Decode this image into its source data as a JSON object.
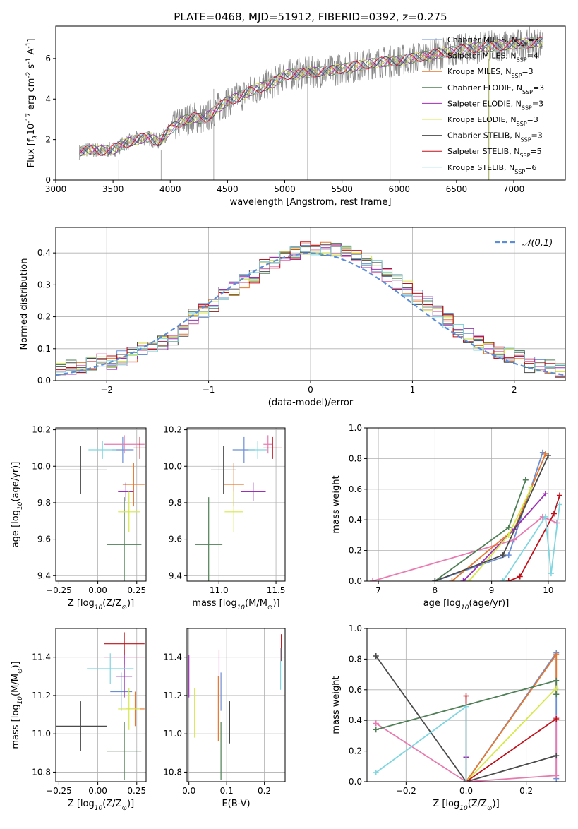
{
  "figure": {
    "title": "PLATE=0468, MJD=51912, FIBERID=0392, z=0.275"
  },
  "models": [
    {
      "name": "Chabrier MILES, N$_{SSP}$=3",
      "label_main": "Chabrier MILES, N",
      "label_sub": "SSP",
      "label_tail": "=3",
      "color": "#6b8fd6"
    },
    {
      "name": "Salpeter MILES, N$_{SSP}$=4",
      "label_main": "Salpeter MILES, N",
      "label_sub": "SSP",
      "label_tail": "=4",
      "color": "#e87ab0"
    },
    {
      "name": "Kroupa MILES, N$_{SSP}$=3",
      "label_main": "Kroupa MILES, N",
      "label_sub": "SSP",
      "label_tail": "=3",
      "color": "#e8772c"
    },
    {
      "name": "Chabrier ELODIE, N$_{SSP}$=3",
      "label_main": "Chabrier ELODIE, N",
      "label_sub": "SSP",
      "label_tail": "=3",
      "color": "#4f7f56"
    },
    {
      "name": "Salpeter ELODIE, N$_{SSP}$=3",
      "label_main": "Salpeter ELODIE, N",
      "label_sub": "SSP",
      "label_tail": "=3",
      "color": "#9b2fb5"
    },
    {
      "name": "Kroupa ELODIE, N$_{SSP}$=3",
      "label_main": "Kroupa ELODIE, N",
      "label_sub": "SSP",
      "label_tail": "=3",
      "color": "#d6e84a"
    },
    {
      "name": "Chabrier STELIB, N$_{SSP}$=3",
      "label_main": "Chabrier STELIB, N",
      "label_sub": "SSP",
      "label_tail": "=3",
      "color": "#4a4a4a"
    },
    {
      "name": "Salpeter STELIB, N$_{SSP}$=5",
      "label_main": "Salpeter STELIB, N",
      "label_sub": "SSP",
      "label_tail": "=5",
      "color": "#c0101a"
    },
    {
      "name": "Kroupa STELIB, N$_{SSP}$=6",
      "label_main": "Kroupa STELIB, N",
      "label_sub": "SSP",
      "label_tail": "=6",
      "color": "#7fd6e0"
    }
  ],
  "chart_data": [
    {
      "id": "spectrum",
      "type": "line",
      "xlabel": "wavelength [Angstrom, rest frame]",
      "ylabel": "Flux [f$_\\lambda$10$^{-17}$ erg cm$^{-2}$ s$^{-1}$ A$^{-1}$]",
      "xlim": [
        3000,
        7450
      ],
      "ylim": [
        0,
        7.6
      ],
      "xticks": [
        3000,
        3500,
        4000,
        4500,
        5000,
        5500,
        6000,
        6500,
        7000
      ],
      "yticks": [
        0,
        2,
        4,
        6
      ],
      "grid": false,
      "legend": "upper right",
      "data_approx": {
        "wavelength": [
          3200,
          3300,
          3400,
          3500,
          3600,
          3700,
          3800,
          3900,
          4000,
          4100,
          4200,
          4300,
          4400,
          4500,
          4600,
          4700,
          4800,
          4900,
          5000,
          5200,
          5400,
          5600,
          5800,
          6000,
          6200,
          6400,
          6600,
          6800,
          7000,
          7200
        ],
        "flux": [
          1.4,
          1.5,
          1.45,
          1.5,
          1.8,
          2.0,
          2.1,
          1.9,
          2.5,
          2.9,
          3.1,
          3.0,
          3.5,
          3.9,
          4.1,
          4.4,
          4.6,
          4.8,
          5.2,
          5.3,
          5.4,
          5.6,
          5.8,
          5.9,
          6.1,
          6.3,
          6.5,
          6.6,
          6.7,
          6.8
        ]
      }
    },
    {
      "id": "residuals",
      "type": "histogram",
      "xlabel": "(data-model)/error",
      "ylabel": "Normed distribution",
      "xlim": [
        -2.5,
        2.5
      ],
      "ylim": [
        0,
        0.48
      ],
      "xticks": [
        -2,
        -1,
        0,
        1,
        2
      ],
      "yticks": [
        0.0,
        0.1,
        0.2,
        0.3,
        0.4
      ],
      "grid": true,
      "legend": "upper right",
      "reference_curve": "$\\mathcal{N}(0,1)$",
      "bins": [
        -2.5,
        -2.4,
        -2.3,
        -2.2,
        -2.1,
        -2.0,
        -1.9,
        -1.8,
        -1.7,
        -1.6,
        -1.5,
        -1.4,
        -1.3,
        -1.2,
        -1.1,
        -1.0,
        -0.9,
        -0.8,
        -0.7,
        -0.6,
        -0.5,
        -0.4,
        -0.3,
        -0.2,
        -0.1,
        0.0,
        0.1,
        0.2,
        0.3,
        0.4,
        0.5,
        0.6,
        0.7,
        0.8,
        0.9,
        1.0,
        1.1,
        1.2,
        1.3,
        1.4,
        1.5,
        1.6,
        1.7,
        1.8,
        1.9,
        2.0,
        2.1,
        2.2,
        2.3,
        2.4,
        2.5
      ],
      "values_approx": [
        0.03,
        0.04,
        0.04,
        0.05,
        0.06,
        0.06,
        0.07,
        0.08,
        0.1,
        0.11,
        0.12,
        0.13,
        0.16,
        0.2,
        0.22,
        0.24,
        0.27,
        0.29,
        0.31,
        0.33,
        0.36,
        0.37,
        0.39,
        0.4,
        0.41,
        0.4,
        0.41,
        0.41,
        0.4,
        0.39,
        0.37,
        0.36,
        0.33,
        0.31,
        0.29,
        0.26,
        0.24,
        0.21,
        0.19,
        0.16,
        0.14,
        0.12,
        0.1,
        0.09,
        0.08,
        0.07,
        0.05,
        0.05,
        0.04,
        0.03
      ]
    },
    {
      "id": "age-vs-Z",
      "type": "scatter",
      "xlabel": "Z [log$_{10}$(Z/Z$_\\odot$)]",
      "ylabel": "age  [log$_{10}$(age/yr)]",
      "xlim": [
        -0.27,
        0.31
      ],
      "ylim": [
        9.37,
        10.21
      ],
      "xticks": [
        -0.25,
        0.0,
        0.25
      ],
      "yticks": [
        9.4,
        9.6,
        9.8,
        10.0,
        10.2
      ],
      "grid": true,
      "points": [
        {
          "x": 0.16,
          "y": 10.09,
          "xerr": 0.07,
          "yerr": 0.07
        },
        {
          "x": 0.17,
          "y": 10.12,
          "xerr": 0.13,
          "yerr": 0.05
        },
        {
          "x": 0.23,
          "y": 9.9,
          "xerr": 0.07,
          "yerr": 0.12
        },
        {
          "x": 0.17,
          "y": 9.57,
          "xerr": 0.11,
          "yerr": 0.26
        },
        {
          "x": 0.18,
          "y": 9.86,
          "xerr": 0.05,
          "yerr": 0.05
        },
        {
          "x": 0.2,
          "y": 9.75,
          "xerr": 0.07,
          "yerr": 0.11
        },
        {
          "x": -0.11,
          "y": 9.98,
          "xerr": 0.17,
          "yerr": 0.13
        },
        {
          "x": 0.27,
          "y": 10.1,
          "xerr": 0.04,
          "yerr": 0.06
        },
        {
          "x": 0.03,
          "y": 10.09,
          "xerr": 0.09,
          "yerr": 0.05
        }
      ]
    },
    {
      "id": "age-vs-mass",
      "type": "scatter",
      "xlabel": "mass [log$_{10}$(M/M$_\\odot$)]",
      "ylabel": "",
      "xlim": [
        10.72,
        11.58
      ],
      "ylim": [
        9.37,
        10.21
      ],
      "xticks": [
        11.0,
        11.5
      ],
      "yticks": [
        9.4,
        9.6,
        9.8,
        10.0,
        10.2
      ],
      "grid": true,
      "points": [
        {
          "x": 11.22,
          "y": 10.09,
          "xerr": 0.1,
          "yerr": 0.07
        },
        {
          "x": 11.43,
          "y": 10.12,
          "xerr": 0.04,
          "yerr": 0.05
        },
        {
          "x": 11.13,
          "y": 9.9,
          "xerr": 0.09,
          "yerr": 0.12
        },
        {
          "x": 10.91,
          "y": 9.57,
          "xerr": 0.12,
          "yerr": 0.26
        },
        {
          "x": 11.3,
          "y": 9.86,
          "xerr": 0.11,
          "yerr": 0.05
        },
        {
          "x": 11.13,
          "y": 9.75,
          "xerr": 0.08,
          "yerr": 0.11
        },
        {
          "x": 11.04,
          "y": 9.98,
          "xerr": 0.11,
          "yerr": 0.13
        },
        {
          "x": 11.47,
          "y": 10.1,
          "xerr": 0.08,
          "yerr": 0.06
        },
        {
          "x": 11.34,
          "y": 10.09,
          "xerr": 0.08,
          "yerr": 0.05
        }
      ]
    },
    {
      "id": "cumulative-age",
      "type": "line",
      "xlabel": "age  [log$_{10}$(age/yr)]",
      "ylabel": "mass weight",
      "xlim": [
        6.8,
        10.3
      ],
      "ylim": [
        0,
        1.0
      ],
      "xticks": [
        7,
        8,
        9,
        10
      ],
      "yticks": [
        0.0,
        0.2,
        0.4,
        0.6,
        0.8,
        1.0
      ],
      "grid": true,
      "series": [
        {
          "x": [
            8.0,
            9.3,
            9.9
          ],
          "y": [
            0.0,
            0.17,
            0.84
          ]
        },
        {
          "x": [
            6.9,
            9.4,
            9.9,
            10.15
          ],
          "y": [
            0.0,
            0.27,
            0.42,
            0.38
          ]
        },
        {
          "x": [
            8.3,
            9.4,
            9.95
          ],
          "y": [
            0.0,
            0.34,
            0.83
          ]
        },
        {
          "x": [
            8.0,
            9.3,
            9.6
          ],
          "y": [
            0.0,
            0.35,
            0.66
          ]
        },
        {
          "x": [
            8.5,
            9.4,
            9.95
          ],
          "y": [
            0.0,
            0.34,
            0.57
          ]
        },
        {
          "x": [
            8.6,
            9.3,
            9.7
          ],
          "y": [
            0.0,
            0.3,
            0.61
          ]
        },
        {
          "x": [
            8.0,
            9.2,
            10.0
          ],
          "y": [
            0.0,
            0.17,
            0.82
          ]
        },
        {
          "x": [
            9.3,
            9.5,
            10.1,
            10.2
          ],
          "y": [
            0.0,
            0.03,
            0.44,
            0.56
          ]
        },
        {
          "x": [
            9.2,
            9.95,
            10.05,
            10.2
          ],
          "y": [
            0.0,
            0.42,
            0.05,
            0.5
          ]
        }
      ]
    },
    {
      "id": "mass-vs-Z",
      "type": "scatter",
      "xlabel": "Z [log$_{10}$(Z/Z$_\\odot$)]",
      "ylabel": "mass [log$_{10}$(M/M$_\\odot$)]",
      "xlim": [
        -0.27,
        0.31
      ],
      "ylim": [
        10.75,
        11.55
      ],
      "xticks": [
        -0.25,
        0.0,
        0.25
      ],
      "yticks": [
        10.8,
        11.0,
        11.2,
        11.4
      ],
      "grid": true,
      "points": [
        {
          "x": 0.15,
          "y": 11.22,
          "xerr": 0.07,
          "yerr": 0.1
        },
        {
          "x": 0.17,
          "y": 11.4,
          "xerr": 0.13,
          "yerr": 0.04
        },
        {
          "x": 0.24,
          "y": 11.13,
          "xerr": 0.06,
          "yerr": 0.09
        },
        {
          "x": 0.17,
          "y": 10.91,
          "xerr": 0.11,
          "yerr": 0.15
        },
        {
          "x": 0.17,
          "y": 11.3,
          "xerr": 0.05,
          "yerr": 0.11
        },
        {
          "x": 0.2,
          "y": 11.13,
          "xerr": 0.07,
          "yerr": 0.11
        },
        {
          "x": -0.11,
          "y": 11.04,
          "xerr": 0.17,
          "yerr": 0.13
        },
        {
          "x": 0.17,
          "y": 11.47,
          "xerr": 0.13,
          "yerr": 0.06
        },
        {
          "x": 0.08,
          "y": 11.34,
          "xerr": 0.15,
          "yerr": 0.08
        }
      ]
    },
    {
      "id": "mass-vs-EBV",
      "type": "scatter",
      "xlabel": "E(B-V)",
      "ylabel": "",
      "xlim": [
        -0.005,
        0.255
      ],
      "ylim": [
        10.75,
        11.55
      ],
      "xticks": [
        0.0,
        0.1,
        0.2
      ],
      "yticks": [
        10.8,
        11.0,
        11.2,
        11.4
      ],
      "grid": true,
      "points": [
        {
          "x": 0.085,
          "y": 11.22,
          "yerr": 0.1
        },
        {
          "x": 0.08,
          "y": 11.3,
          "yerr": 0.14
        },
        {
          "x": 0.078,
          "y": 11.13,
          "yerr": 0.17
        },
        {
          "x": 0.085,
          "y": 10.91,
          "yerr": 0.15
        },
        {
          "x": 0.0,
          "y": 11.3,
          "yerr": 0.11
        },
        {
          "x": 0.015,
          "y": 11.11,
          "yerr": 0.13
        },
        {
          "x": 0.108,
          "y": 11.06,
          "yerr": 0.11
        },
        {
          "x": 0.245,
          "y": 11.45,
          "yerr": 0.07
        },
        {
          "x": 0.243,
          "y": 11.34,
          "yerr": 0.11
        }
      ]
    },
    {
      "id": "cumulative-Z",
      "type": "line",
      "xlabel": "Z [log$_{10}$(Z/Z$_\\odot$)]",
      "ylabel": "mass weight",
      "xlim": [
        -0.33,
        0.33
      ],
      "ylim": [
        0,
        1.0
      ],
      "xticks": [
        -0.2,
        0.0,
        0.2
      ],
      "yticks": [
        0.0,
        0.2,
        0.4,
        0.6,
        0.8,
        1.0
      ],
      "grid": true,
      "series": [
        {
          "x": [
            0.0,
            0.3,
            0.3,
            0.3
          ],
          "y": [
            0.0,
            0.84,
            0.42,
            0.02
          ]
        },
        {
          "x": [
            -0.3,
            0.0,
            0.3,
            0.3
          ],
          "y": [
            0.38,
            0.0,
            0.04,
            0.42
          ]
        },
        {
          "x": [
            0.0,
            0.3,
            0.3
          ],
          "y": [
            0.0,
            0.83,
            0.57
          ]
        },
        {
          "x": [
            -0.3,
            0.3,
            0.3
          ],
          "y": [
            0.34,
            0.66,
            0.57
          ]
        },
        {
          "x": [
            0.0,
            0.0
          ],
          "y": [
            0.16,
            0.16
          ]
        },
        {
          "x": [
            0.0,
            0.3
          ],
          "y": [
            0.0,
            0.61
          ]
        },
        {
          "x": [
            -0.3,
            0.0,
            0.3
          ],
          "y": [
            0.82,
            0.0,
            0.17
          ]
        },
        {
          "x": [
            0.0,
            0.0,
            0.3
          ],
          "y": [
            0.56,
            0.0,
            0.41
          ]
        },
        {
          "x": [
            -0.3,
            0.0,
            0.0
          ],
          "y": [
            0.06,
            0.49,
            0.0
          ]
        }
      ]
    }
  ]
}
